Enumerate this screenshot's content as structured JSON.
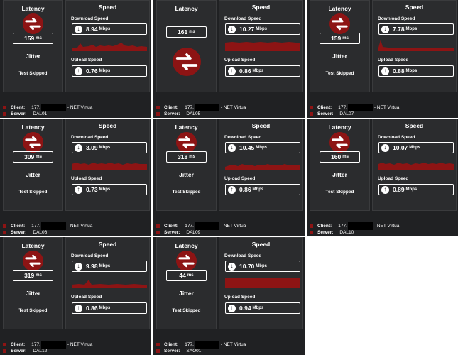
{
  "labels": {
    "latency": "Latency",
    "speed": "Speed",
    "download": "Download Speed",
    "upload": "Upload Speed",
    "jitter": "Jitter",
    "skipped": "Test Skipped",
    "client": "Client:",
    "server": "Server:",
    "ms": "ms",
    "mbps": "Mbps"
  },
  "results": [
    {
      "latency": "159",
      "download": "8.94",
      "upload": "0.76",
      "client_prefix": "177.",
      "client_suffix": "- NET Virtua",
      "server": "DAL01"
    },
    {
      "latency": "161",
      "download": "10.27",
      "upload": "0.86",
      "client_prefix": "177.",
      "client_suffix": "- NET Virtua",
      "server": "DAL05"
    },
    {
      "latency": "159",
      "download": "7.78",
      "upload": "0.88",
      "client_prefix": "177.",
      "client_suffix": "- NET Virtua",
      "server": "DAL07"
    },
    {
      "latency": "309",
      "download": "3.09",
      "upload": "0.73",
      "client_prefix": "177.",
      "client_suffix": "- NET Virtua",
      "server": "DAL06"
    },
    {
      "latency": "318",
      "download": "10.45",
      "upload": "0.86",
      "client_prefix": "177.",
      "client_suffix": "- NET Virtua",
      "server": "DAL09"
    },
    {
      "latency": "160",
      "download": "10.07",
      "upload": "0.89",
      "client_prefix": "177.",
      "client_suffix": "- NET Virtua",
      "server": "DAL10"
    },
    {
      "latency": "319",
      "download": "9.98",
      "upload": "0.86",
      "client_prefix": "177.",
      "client_suffix": "- NET Virtua",
      "server": "DAL12"
    },
    {
      "latency": "44",
      "download": "10.70",
      "upload": "0.94",
      "client_prefix": "177.",
      "client_suffix": "- NET Virtua",
      "server": "SAO01"
    }
  ],
  "colors": {
    "accent": "#8d1414",
    "graph": "#8d1414",
    "panel": "#2b2c2e",
    "tile": "#202123"
  },
  "icons": {
    "latency": "network-arrows-icon",
    "download": "download-arrow-icon",
    "upload": "upload-arrow-icon",
    "row": "square-bullet-icon"
  }
}
